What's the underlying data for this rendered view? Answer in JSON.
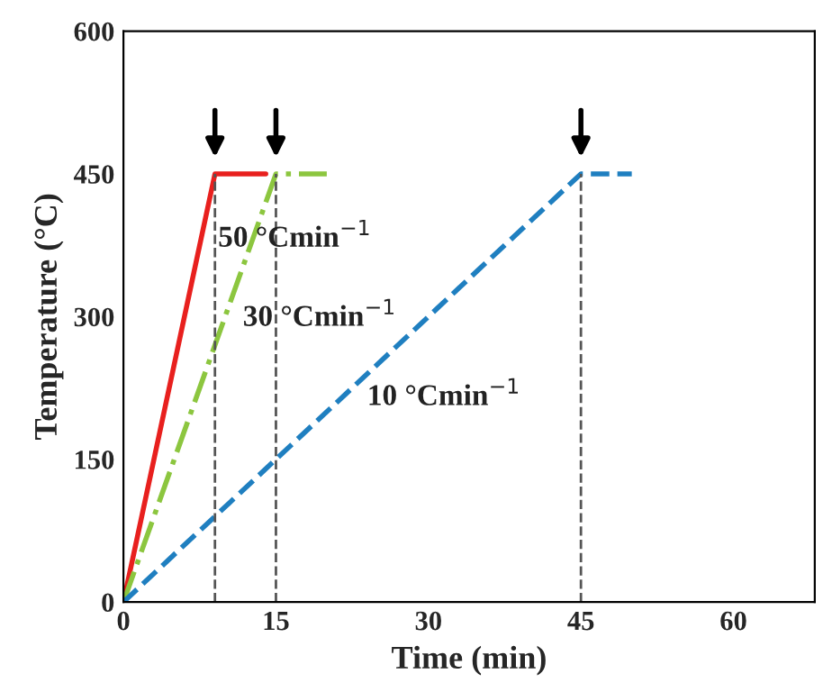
{
  "chart_data": {
    "type": "line",
    "xlabel": "Time (min)",
    "ylabel": "Temperature (°C)",
    "xlim": [
      0,
      68
    ],
    "xticks": [
      0,
      15,
      30,
      45,
      60
    ],
    "ylim": [
      0,
      600
    ],
    "yticks": [
      0,
      150,
      300,
      450,
      600
    ],
    "grid": false,
    "legend": false,
    "series": [
      {
        "name": "50 °Cmin$^{−1}$",
        "color": "#e8201e",
        "line_style": "solid",
        "x": [
          0,
          9,
          14
        ],
        "values": [
          0,
          450,
          450
        ]
      },
      {
        "name": "30 °Cmin$^{−1}$",
        "color": "#8cc63f",
        "line_style": "dashdot",
        "x": [
          0,
          15,
          20
        ],
        "values": [
          0,
          450,
          450
        ]
      },
      {
        "name": "10 °Cmin$^{−1}$",
        "color": "#1f7fc0",
        "line_style": "dashed",
        "x": [
          0,
          45,
          50
        ],
        "values": [
          0,
          450,
          450
        ]
      }
    ],
    "ref_lines": [
      {
        "axis": "x",
        "value": 9,
        "color": "#555555",
        "line_style": "dashed"
      },
      {
        "axis": "x",
        "value": 15,
        "color": "#555555",
        "line_style": "dashed"
      },
      {
        "axis": "x",
        "value": 45,
        "color": "#555555",
        "line_style": "dashed"
      }
    ]
  }
}
